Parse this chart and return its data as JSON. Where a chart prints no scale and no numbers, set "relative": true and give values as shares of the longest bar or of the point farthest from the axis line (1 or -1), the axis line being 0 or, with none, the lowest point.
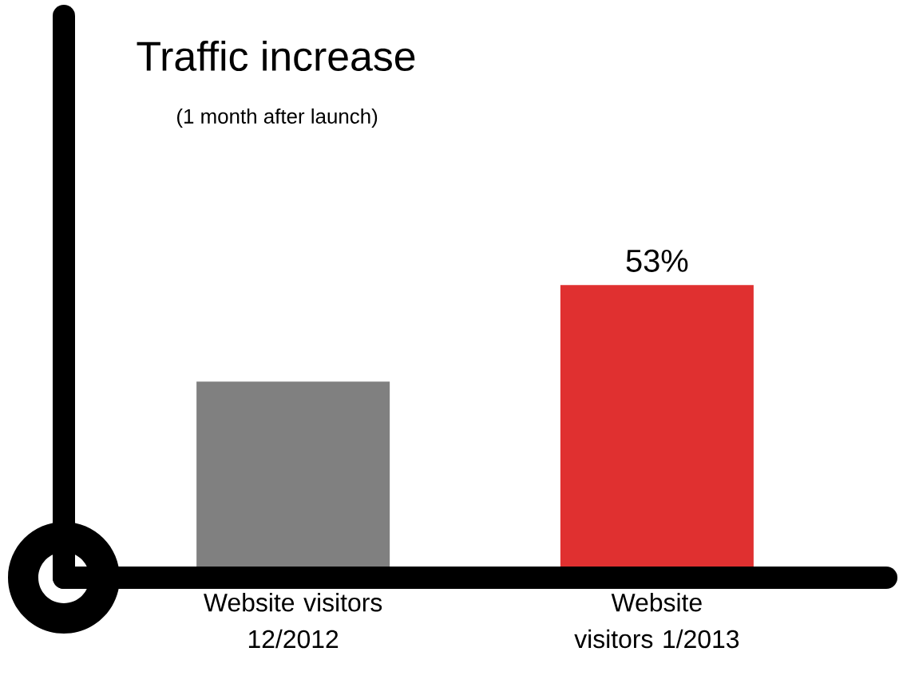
{
  "chart_data": {
    "type": "bar",
    "title": "Traffic increase",
    "subtitle": "(1 month after launch)",
    "categories": [
      "Website visitors 12/2012",
      "Website visitors 1/2013"
    ],
    "values": [
      0.67,
      1
    ],
    "colors": [
      "#808080",
      "#e03030"
    ],
    "annotations": [
      {
        "text": "53%",
        "x": "Website visitors 1/2013",
        "y": 1
      }
    ],
    "relative": true
  }
}
